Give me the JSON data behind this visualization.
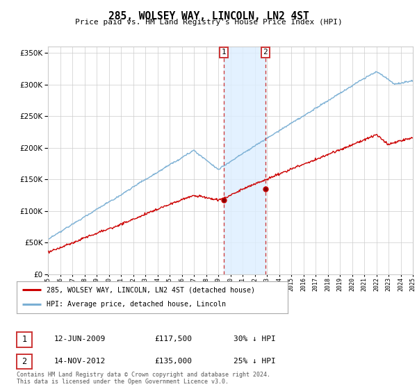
{
  "title": "285, WOLSEY WAY, LINCOLN, LN2 4ST",
  "subtitle": "Price paid vs. HM Land Registry's House Price Index (HPI)",
  "ylim": [
    0,
    360000
  ],
  "yticks": [
    0,
    50000,
    100000,
    150000,
    200000,
    250000,
    300000,
    350000
  ],
  "xlim_start": 1995,
  "xlim_end": 2025,
  "marker1_date": 2009.44,
  "marker2_date": 2012.87,
  "marker1_price": 117500,
  "marker2_price": 135000,
  "legend_line1": "285, WOLSEY WAY, LINCOLN, LN2 4ST (detached house)",
  "legend_line2": "HPI: Average price, detached house, Lincoln",
  "annotation1_num": "1",
  "annotation1_date": "12-JUN-2009",
  "annotation1_price": "£117,500",
  "annotation1_pct": "30% ↓ HPI",
  "annotation2_num": "2",
  "annotation2_date": "14-NOV-2012",
  "annotation2_price": "£135,000",
  "annotation2_pct": "25% ↓ HPI",
  "footer": "Contains HM Land Registry data © Crown copyright and database right 2024.\nThis data is licensed under the Open Government Licence v3.0.",
  "hpi_color": "#7aafd4",
  "price_color": "#cc0000",
  "shade_color": "#ddeeff",
  "grid_color": "#cccccc",
  "background_color": "#ffffff"
}
